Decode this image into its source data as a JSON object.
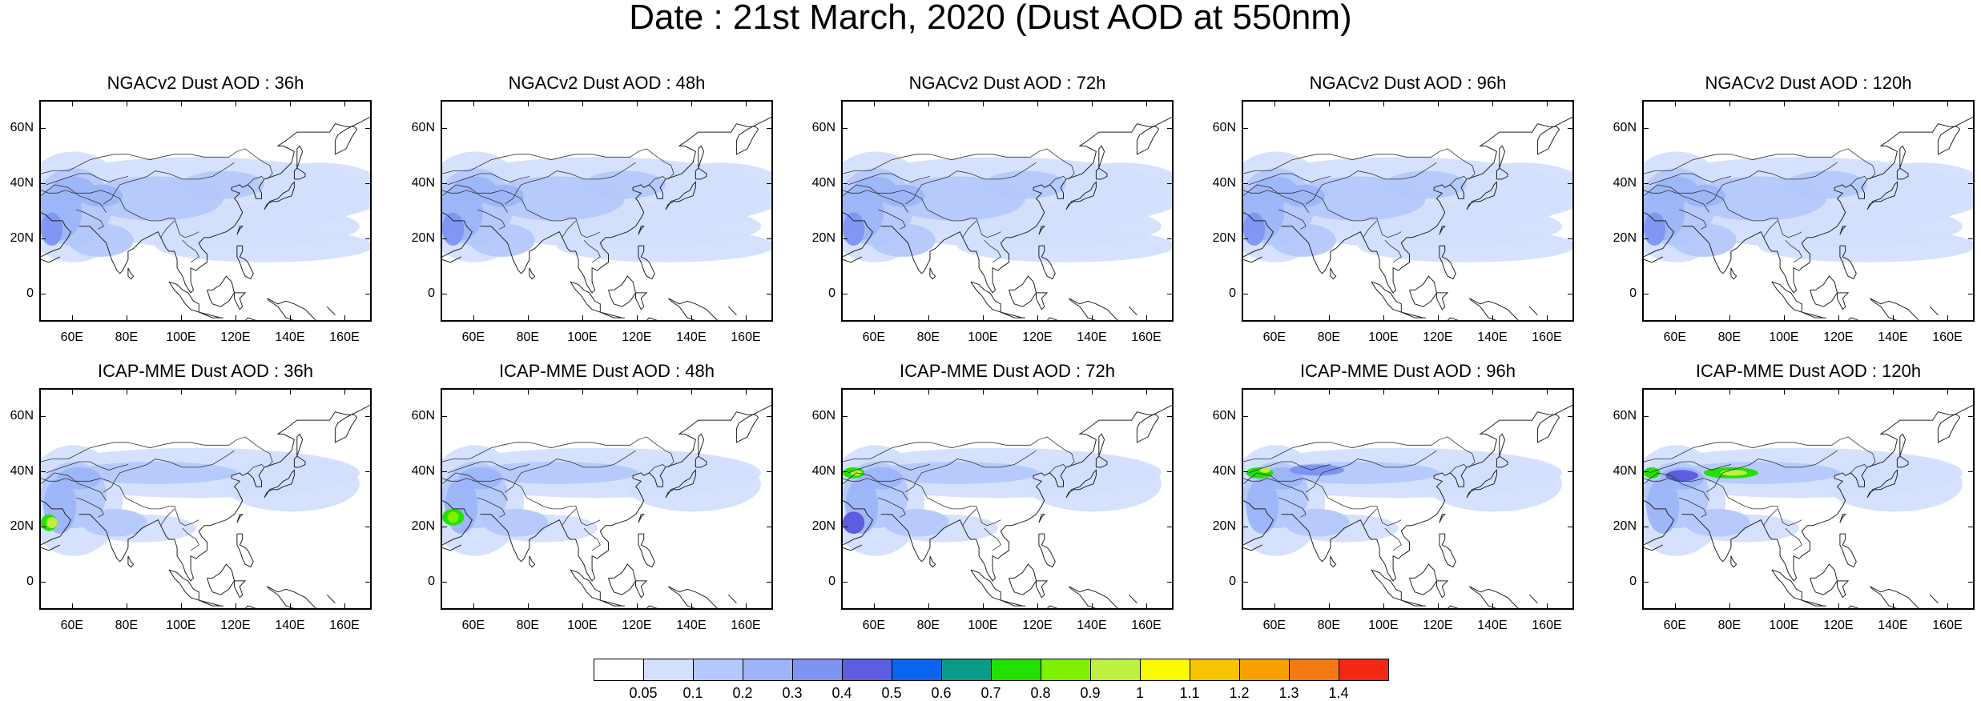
{
  "title": "Date : 21st March, 2020 (Dust AOD at 550nm)",
  "lat_ticks": [
    "60N",
    "40N",
    "20N",
    "0"
  ],
  "lon_ticks": [
    "60E",
    "80E",
    "100E",
    "120E",
    "140E",
    "160E"
  ],
  "panels": [
    {
      "title": "NGACv2 Dust AOD : 36h",
      "model": "NGACv2",
      "lead": "36h"
    },
    {
      "title": "NGACv2 Dust AOD : 48h",
      "model": "NGACv2",
      "lead": "48h"
    },
    {
      "title": "NGACv2 Dust AOD : 72h",
      "model": "NGACv2",
      "lead": "72h"
    },
    {
      "title": "NGACv2 Dust AOD : 96h",
      "model": "NGACv2",
      "lead": "96h"
    },
    {
      "title": "NGACv2 Dust AOD : 120h",
      "model": "NGACv2",
      "lead": "120h"
    },
    {
      "title": "ICAP-MME Dust AOD : 36h",
      "model": "ICAP-MME",
      "lead": "36h"
    },
    {
      "title": "ICAP-MME Dust AOD : 48h",
      "model": "ICAP-MME",
      "lead": "48h"
    },
    {
      "title": "ICAP-MME Dust AOD : 72h",
      "model": "ICAP-MME",
      "lead": "72h"
    },
    {
      "title": "ICAP-MME Dust AOD : 96h",
      "model": "ICAP-MME",
      "lead": "96h"
    },
    {
      "title": "ICAP-MME Dust AOD : 120h",
      "model": "ICAP-MME",
      "lead": "120h"
    }
  ],
  "map_extent": {
    "lon_min": 48,
    "lon_max": 170,
    "lat_min": -10,
    "lat_max": 70
  },
  "colorbar": {
    "labels": [
      "0.05",
      "0.1",
      "0.2",
      "0.3",
      "0.4",
      "0.5",
      "0.6",
      "0.7",
      "0.8",
      "0.9",
      "1",
      "1.1",
      "1.2",
      "1.3",
      "1.4"
    ],
    "colors": [
      "#ffffff",
      "#d3dffd",
      "#b4c8fb",
      "#9db5f8",
      "#7e94f2",
      "#5c5ddf",
      "#0a64f0",
      "#0a9a8a",
      "#22e000",
      "#7ef000",
      "#bef040",
      "#fafa00",
      "#f8c400",
      "#f7a100",
      "#f57a14",
      "#f52814"
    ]
  }
}
